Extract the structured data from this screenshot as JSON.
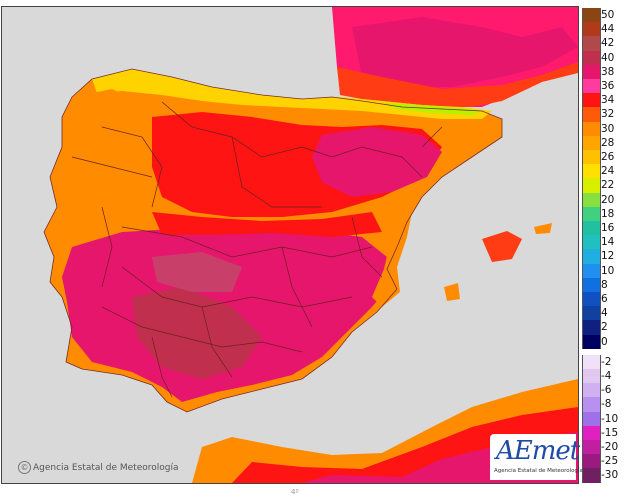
{
  "map": {
    "credit_text": "Agencia Estatal de Meteorología",
    "copyright_symbol": "©",
    "bottom_mark": "4º",
    "logo": {
      "wordmark": "AEmet",
      "subtitle": "Agencia Estatal de Meteorología"
    },
    "colors": {
      "background_unused_land": "#d9d9d9",
      "sea": "#d9d9d9",
      "hottest": "#c0304e",
      "very_hot": "#e6166d",
      "hot": "#ff1414",
      "warm": "#ff8c00",
      "mild": "#ffd300",
      "cool": "#b8f000",
      "boundary": "#6b2020"
    }
  },
  "legend": {
    "entries": [
      {
        "label": "50",
        "color": "#8b4513"
      },
      {
        "label": "44",
        "color": "#b03a1a"
      },
      {
        "label": "42",
        "color": "#b04a4a"
      },
      {
        "label": "40",
        "color": "#c0304e"
      },
      {
        "label": "38",
        "color": "#e6166d"
      },
      {
        "label": "36",
        "color": "#ff3c9e"
      },
      {
        "label": "34",
        "color": "#ff1414"
      },
      {
        "label": "32",
        "color": "#ff5a0a"
      },
      {
        "label": "30",
        "color": "#ff8c00"
      },
      {
        "label": "28",
        "color": "#ffa500"
      },
      {
        "label": "26",
        "color": "#ffc000"
      },
      {
        "label": "24",
        "color": "#ffe000"
      },
      {
        "label": "22",
        "color": "#d8f000"
      },
      {
        "label": "20",
        "color": "#88e040"
      },
      {
        "label": "18",
        "color": "#40d080"
      },
      {
        "label": "16",
        "color": "#20c0a0"
      },
      {
        "label": "14",
        "color": "#20c0c0"
      },
      {
        "label": "12",
        "color": "#20b0e0"
      },
      {
        "label": "10",
        "color": "#2090f0"
      },
      {
        "label": "8",
        "color": "#1070e0"
      },
      {
        "label": "6",
        "color": "#1050c0"
      },
      {
        "label": "4",
        "color": "#1040a0"
      },
      {
        "label": "2",
        "color": "#102080"
      },
      {
        "label": "0",
        "color": "#000060"
      },
      {
        "label": "-2",
        "color": "#f0e0f8"
      },
      {
        "label": "-4",
        "color": "#e0c8f0"
      },
      {
        "label": "-6",
        "color": "#d0b0f0"
      },
      {
        "label": "-8",
        "color": "#b890f0"
      },
      {
        "label": "-10",
        "color": "#a070e8"
      },
      {
        "label": "-15",
        "color": "#e020c0"
      },
      {
        "label": "-20",
        "color": "#c020a0"
      },
      {
        "label": "-25",
        "color": "#9a1a80"
      },
      {
        "label": "-30",
        "color": "#702060"
      }
    ]
  }
}
